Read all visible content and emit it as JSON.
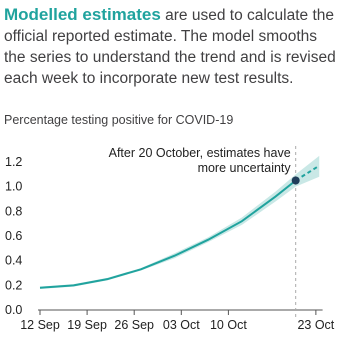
{
  "intro": {
    "highlight": "Modelled estimates",
    "text": " are used to calculate the official reported estimate. The model smooths the series to understand the trend and is revised each week to incorporate new test results."
  },
  "chart_data": {
    "type": "line",
    "title": "Percentage testing positive for COVID-19",
    "annotation": [
      "After 20 October, estimates have",
      "more uncertainty"
    ],
    "x": [
      0,
      5,
      10,
      15,
      20,
      25,
      30,
      35,
      38,
      41.5
    ],
    "series": [
      {
        "color": "#20a39e",
        "dash": false,
        "values": [
          0.18,
          0.2,
          0.25,
          0.33,
          0.44,
          0.57,
          0.72,
          0.92,
          1.05,
          null
        ]
      },
      {
        "color": "#20a39e",
        "dash": true,
        "values": [
          null,
          null,
          null,
          null,
          null,
          null,
          null,
          null,
          1.05,
          1.17
        ]
      }
    ],
    "band": {
      "color": "#c9e8e6",
      "lower": [
        0.17,
        0.19,
        0.24,
        0.32,
        0.42,
        0.55,
        0.69,
        0.88,
        1.0,
        1.08
      ],
      "upper": [
        0.19,
        0.21,
        0.26,
        0.34,
        0.46,
        0.59,
        0.75,
        0.96,
        1.1,
        1.25
      ]
    },
    "marker": {
      "x": 38,
      "value": 1.05,
      "color": "#1f3d5a"
    },
    "vline": 38,
    "xlim": [
      0,
      42
    ],
    "xticks": [
      {
        "value": 0,
        "label": "12 Sep"
      },
      {
        "value": 7,
        "label": "19 Sep"
      },
      {
        "value": 14,
        "label": "26 Sep"
      },
      {
        "value": 21,
        "label": "03 Oct"
      },
      {
        "value": 28,
        "label": "10 Oct"
      },
      {
        "value": 41,
        "label": "23 Oct"
      }
    ],
    "ylim": [
      0,
      1.2
    ],
    "yticks": [
      {
        "value": 0,
        "label": "0.0"
      },
      {
        "value": 0.2,
        "label": "0.2"
      },
      {
        "value": 0.4,
        "label": "0.4"
      },
      {
        "value": 0.6,
        "label": "0.6"
      },
      {
        "value": 0.8,
        "label": "0.8"
      },
      {
        "value": 1,
        "label": "1.0"
      },
      {
        "value": 1.2,
        "label": "1.2"
      }
    ],
    "grid": false
  }
}
